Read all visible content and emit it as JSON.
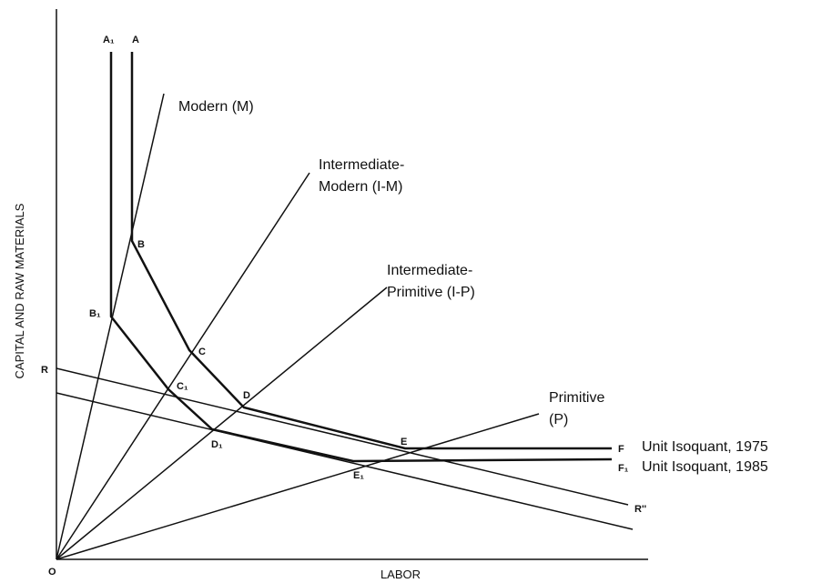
{
  "axes": {
    "y_label": "CAPITAL AND RAW MATERIALS",
    "x_label": "LABOR",
    "origin": "O"
  },
  "rays": [
    {
      "lines": [
        "Modern (M)"
      ]
    },
    {
      "lines": [
        "Intermediate-",
        "Modern (I-M)"
      ]
    },
    {
      "lines": [
        "Intermediate-",
        "Primitive (I-P)"
      ]
    },
    {
      "lines": [
        "Primitive",
        "(P)"
      ]
    }
  ],
  "isoquants": [
    {
      "label": "Unit Isoquant, 1975",
      "points": [
        "A",
        "B",
        "C",
        "D",
        "E",
        "F"
      ]
    },
    {
      "label": "Unit Isoquant, 1985",
      "points": [
        "A₁",
        "B₁",
        "C₁",
        "D₁",
        "E₁",
        "F₁"
      ]
    }
  ],
  "price_lines": [
    "R",
    "R''"
  ]
}
